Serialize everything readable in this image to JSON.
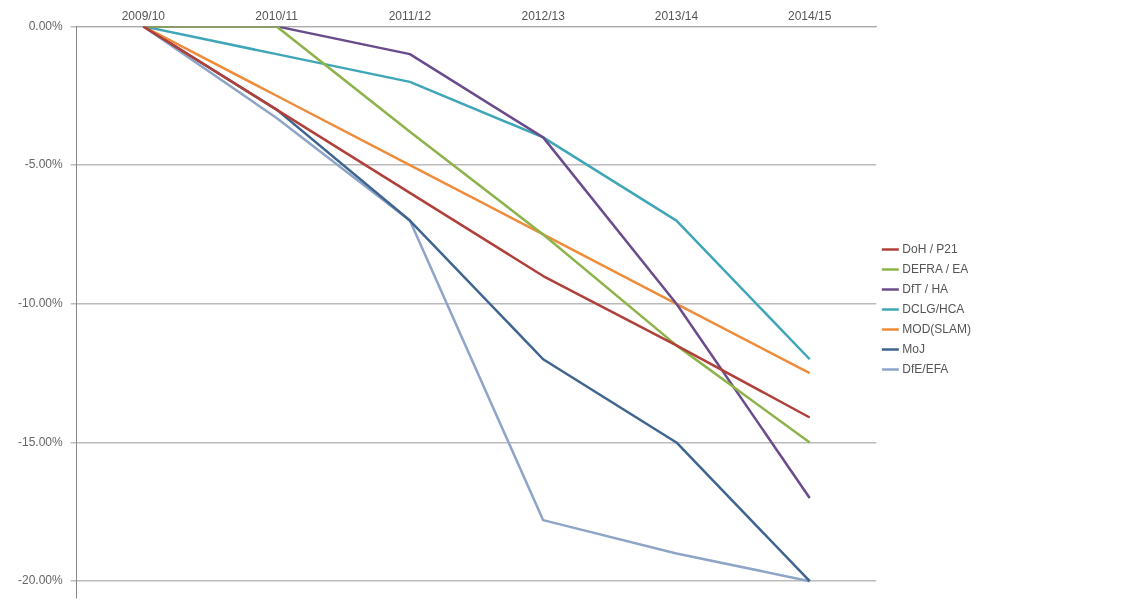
{
  "chart_data": {
    "type": "line",
    "categories": [
      "2009/10",
      "2010/11",
      "2011/12",
      "2012/13",
      "2013/14",
      "2014/15"
    ],
    "series": [
      {
        "name": "DoH / P21",
        "color": "#b0403a",
        "values": [
          0,
          -3,
          -6,
          -9,
          -11.5,
          -14.1
        ]
      },
      {
        "name": "DEFRA / EA",
        "color": "#8db34a",
        "values": [
          0,
          0,
          -3.8,
          -7.5,
          -11.5,
          -15
        ]
      },
      {
        "name": "DfT / HA",
        "color": "#6a4c8c",
        "values": [
          0,
          0,
          -1,
          -4,
          -10,
          -17
        ]
      },
      {
        "name": "DCLG/HCA",
        "color": "#3fa6b8",
        "values": [
          0,
          -1,
          -2,
          -4,
          -7,
          -12
        ]
      },
      {
        "name": "MOD(SLAM)",
        "color": "#ef8c3a",
        "values": [
          0,
          -2.5,
          -5,
          -7.5,
          -10,
          -12.5
        ]
      },
      {
        "name": "MoJ",
        "color": "#3e6490",
        "values": [
          0,
          -3,
          -7,
          -12,
          -15,
          -20
        ]
      },
      {
        "name": "DfE/EFA",
        "color": "#8ea5c8",
        "values": [
          0,
          -3.3,
          -7,
          -17.8,
          -19,
          -20
        ]
      }
    ],
    "ylim": [
      -20.6,
      0
    ],
    "yticks": [
      {
        "value": 0,
        "label": "0.00%"
      },
      {
        "value": -5,
        "label": "-5.00%"
      },
      {
        "value": -10,
        "label": "-10.00%"
      },
      {
        "value": -15,
        "label": "-15.00%"
      },
      {
        "value": -20,
        "label": "-20.00%"
      }
    ],
    "grid": "y",
    "legend": "right",
    "marker": "none",
    "line_style": "solid"
  }
}
